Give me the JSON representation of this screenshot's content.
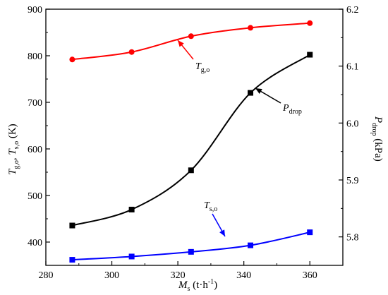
{
  "chart_data": {
    "type": "line",
    "x": [
      288,
      306,
      324,
      342,
      360
    ],
    "xlim": [
      280,
      370
    ],
    "xticks": [
      280,
      300,
      320,
      340,
      360
    ],
    "ylim_left": [
      350,
      900
    ],
    "yticks_left": [
      400,
      500,
      600,
      700,
      800,
      900
    ],
    "ylim_right": [
      5.75,
      6.2
    ],
    "yticks_right": [
      5.8,
      5.9,
      6.0,
      6.1,
      6.2
    ],
    "grid": false,
    "series": [
      {
        "key": "tgo",
        "axis": "left",
        "color": "#ff0000",
        "marker": "circle",
        "values": [
          792,
          808,
          842,
          860,
          870
        ]
      },
      {
        "key": "tso",
        "axis": "left",
        "color": "#0000ff",
        "marker": "square",
        "values": [
          362,
          369,
          379,
          393,
          421
        ]
      },
      {
        "key": "pdrop",
        "axis": "right",
        "color": "#000000",
        "marker": "square",
        "values": [
          5.82,
          5.848,
          5.917,
          6.053,
          6.12
        ]
      }
    ],
    "labels": {
      "xlabel_main": "M",
      "xlabel_sub": "s",
      "xlabel_unit": " (t·h",
      "xlabel_sup": "-1",
      "xlabel_close": ")",
      "ylabel_left_a": "T",
      "ylabel_left_a_sub": "g,o",
      "ylabel_left_sep": ", ",
      "ylabel_left_b": "T",
      "ylabel_left_b_sub": "s,o",
      "ylabel_left_unit": " (K)",
      "ylabel_right_main": "P",
      "ylabel_right_sub": "drop",
      "ylabel_right_unit": " (kPa)",
      "annot_tgo_main": "T",
      "annot_tgo_sub": "g,o",
      "annot_pdrop_main": "P",
      "annot_pdrop_sub": "drop",
      "annot_tso_main": "T",
      "annot_tso_sub": "s,o"
    }
  }
}
